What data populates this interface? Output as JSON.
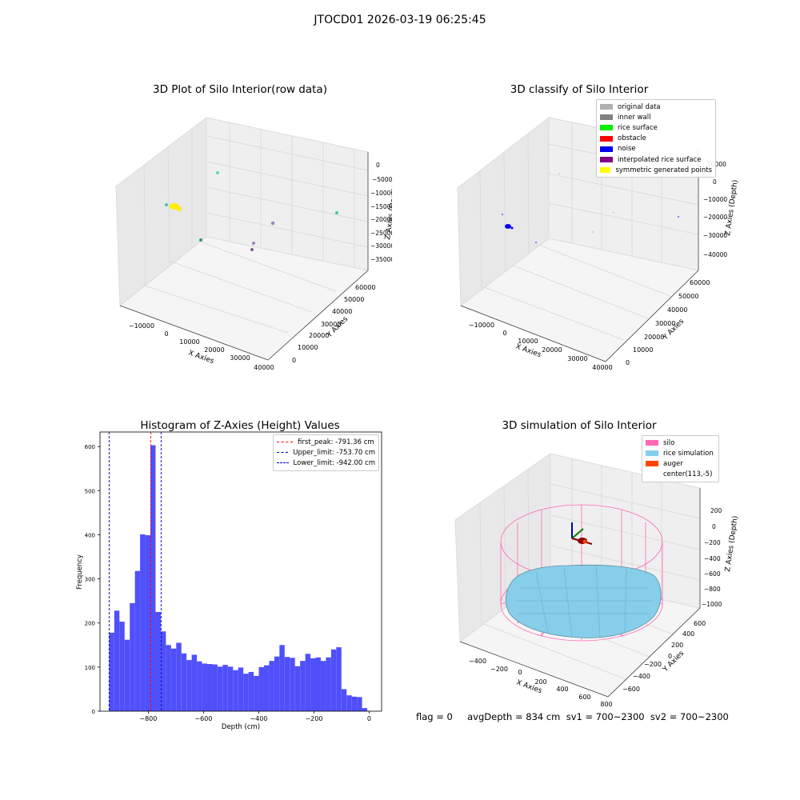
{
  "figure": {
    "suptitle": "JTOCD01 2026-03-19 06:25:45",
    "footer": "flag = 0     avgDepth = 834 cm  sv1 = 700~2300  sv2 = 700~2300"
  },
  "colors": {
    "hist_bar": "#5050fa",
    "first_peak": "#ff0000",
    "limit_lines": "#0000cc",
    "silo": "#ff69b4",
    "rice_simulation": "#87ceeb",
    "auger": "#ff4500",
    "pane": "#f2f2f2"
  },
  "chart_data": [
    {
      "type": "scatter",
      "title": "3D Plot of Silo Interior(row data)",
      "xlabel": "X Axies",
      "ylabel": "Y Axies",
      "zlabel": "Z Axies (Depth)",
      "xticks": [
        "−10000",
        "0",
        "10000",
        "20000",
        "30000",
        "40000"
      ],
      "yticks": [
        "0",
        "10000",
        "20000",
        "30000",
        "40000",
        "50000",
        "60000"
      ],
      "zticks": [
        "0",
        "−5000",
        "−10000",
        "−15000",
        "−20000",
        "−25000",
        "−30000",
        "−35000"
      ]
    },
    {
      "type": "scatter",
      "title": "3D classify of Silo Interior",
      "xlabel": "X Axies",
      "ylabel": "Y Axies",
      "zlabel": "Z Axies (Depth)",
      "xticks": [
        "−10000",
        "0",
        "10000",
        "20000",
        "30000",
        "40000"
      ],
      "yticks": [
        "0",
        "10000",
        "20000",
        "30000",
        "40000",
        "50000",
        "60000"
      ],
      "zticks": [
        "10000",
        "0",
        "−10000",
        "−20000",
        "−30000",
        "−40000"
      ],
      "legend": [
        {
          "label": "original data",
          "color": "#b0b0b0"
        },
        {
          "label": "inner wall",
          "color": "#808080"
        },
        {
          "label": "rice surface",
          "color": "#00ee00"
        },
        {
          "label": "obstacle",
          "color": "#ff0000"
        },
        {
          "label": "noise",
          "color": "#0000ee"
        },
        {
          "label": "interpolated rice surface",
          "color": "#800080"
        },
        {
          "label": "symmetric generated points",
          "color": "#ffff00"
        }
      ]
    },
    {
      "type": "bar",
      "title": "Histogram of Z-Axies (Height) Values",
      "xlabel": "Depth (cm)",
      "ylabel": "Frequency",
      "xlim": [
        -975,
        45
      ],
      "ylim": [
        0,
        633
      ],
      "xticks": [
        -800,
        -600,
        -400,
        -200,
        0
      ],
      "yticks": [
        0,
        100,
        200,
        300,
        400,
        500,
        600
      ],
      "bin_start": -942,
      "bin_width": 18.7,
      "values": [
        178,
        228,
        203,
        162,
        245,
        318,
        401,
        399,
        603,
        225,
        181,
        150,
        142,
        155,
        131,
        116,
        128,
        113,
        108,
        107,
        106,
        101,
        105,
        101,
        93,
        99,
        85,
        89,
        80,
        100,
        104,
        114,
        124,
        150,
        123,
        121,
        102,
        114,
        130,
        120,
        122,
        114,
        122,
        140,
        145,
        50,
        36,
        33,
        32,
        7
      ],
      "vlines": [
        {
          "label": "first_peak: -791.36 cm",
          "x": -791.36,
          "color": "#ff0000"
        },
        {
          "label": "Upper_limit: -753.70 cm",
          "x": -753.7,
          "color": "#0000cc"
        },
        {
          "label": "Lower_limit: -942.00 cm",
          "x": -942.0,
          "color": "#0000cc"
        }
      ]
    },
    {
      "type": "surface",
      "title": "3D simulation of Silo Interior",
      "xlabel": "X Axies",
      "ylabel": "Y Axies",
      "zlabel": "Z Axies (Depth)",
      "xticks": [
        "−400",
        "−200",
        "0",
        "200",
        "400",
        "600",
        "800"
      ],
      "yticks": [
        "−600",
        "−400",
        "−200",
        "0",
        "200",
        "400",
        "600"
      ],
      "zticks": [
        "200",
        "0",
        "−200",
        "−400",
        "−600",
        "−800",
        "−1000"
      ],
      "legend": [
        {
          "label": "silo",
          "color": "#ff69b4"
        },
        {
          "label": "rice simulation",
          "color": "#87ceeb"
        },
        {
          "label": "auger",
          "color": "#ff4500"
        },
        {
          "label": "center(113,-5)",
          "color": ""
        }
      ]
    }
  ]
}
